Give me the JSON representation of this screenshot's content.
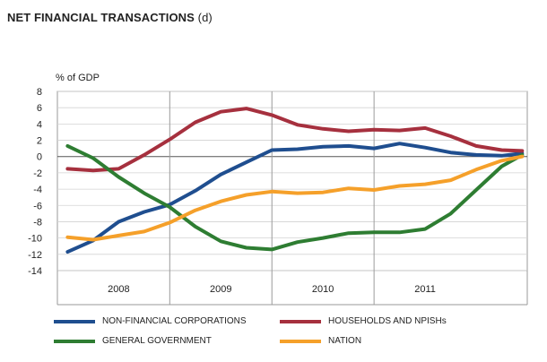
{
  "title": "NET FINANCIAL TRANSACTIONS",
  "title_suffix": "(d)",
  "chart_data": {
    "type": "line",
    "title": "NET FINANCIAL TRANSACTIONS (d)",
    "ylabel": "% of GDP",
    "xlabel": "",
    "ylim": [
      -14,
      8
    ],
    "yticks": [
      8,
      6,
      4,
      2,
      0,
      -2,
      -4,
      -6,
      -8,
      -10,
      -12,
      -14
    ],
    "xlim": [
      2007.4,
      2012.0
    ],
    "xticks": [
      {
        "label": "2008",
        "x": 2008.0
      },
      {
        "label": "2009",
        "x": 2009.0
      },
      {
        "label": "2010",
        "x": 2010.0
      },
      {
        "label": "2011",
        "x": 2011.0
      }
    ],
    "year_dividers": [
      2008.5,
      2009.5,
      2010.5
    ],
    "grid": true,
    "legend_position": "bottom",
    "series": [
      {
        "name": "NON-FINANCIAL CORPORATIONS",
        "color": "#1f4e8f",
        "x": [
          2007.5,
          2007.75,
          2008.0,
          2008.25,
          2008.5,
          2008.75,
          2009.0,
          2009.25,
          2009.5,
          2009.75,
          2010.0,
          2010.25,
          2010.5,
          2010.75,
          2011.0,
          2011.25,
          2011.5,
          2011.75,
          2011.95
        ],
        "values": [
          -11.7,
          -10.3,
          -8.0,
          -6.8,
          -5.9,
          -4.2,
          -2.2,
          -0.7,
          0.8,
          0.9,
          1.2,
          1.3,
          1.0,
          1.6,
          1.1,
          0.5,
          0.2,
          0.1,
          0.4
        ]
      },
      {
        "name": "HOUSEHOLDS AND NPISHs",
        "color": "#a6303e",
        "x": [
          2007.5,
          2007.75,
          2008.0,
          2008.25,
          2008.5,
          2008.75,
          2009.0,
          2009.25,
          2009.5,
          2009.75,
          2010.0,
          2010.25,
          2010.5,
          2010.75,
          2011.0,
          2011.25,
          2011.5,
          2011.75,
          2011.95
        ],
        "values": [
          -1.5,
          -1.7,
          -1.5,
          0.2,
          2.1,
          4.2,
          5.5,
          5.9,
          5.1,
          3.9,
          3.4,
          3.1,
          3.3,
          3.2,
          3.5,
          2.5,
          1.3,
          0.8,
          0.7
        ]
      },
      {
        "name": "GENERAL GOVERNMENT",
        "color": "#2e7d32",
        "x": [
          2007.5,
          2007.75,
          2008.0,
          2008.25,
          2008.5,
          2008.75,
          2009.0,
          2009.25,
          2009.5,
          2009.75,
          2010.0,
          2010.25,
          2010.5,
          2010.75,
          2011.0,
          2011.25,
          2011.5,
          2011.75,
          2011.95
        ],
        "values": [
          1.3,
          -0.2,
          -2.5,
          -4.5,
          -6.2,
          -8.6,
          -10.4,
          -11.2,
          -11.4,
          -10.5,
          -10.0,
          -9.4,
          -9.3,
          -9.3,
          -8.9,
          -7.0,
          -4.1,
          -1.2,
          0.2
        ]
      },
      {
        "name": "NATION",
        "color": "#f5a02a",
        "x": [
          2007.5,
          2007.75,
          2008.0,
          2008.25,
          2008.5,
          2008.75,
          2009.0,
          2009.25,
          2009.5,
          2009.75,
          2010.0,
          2010.25,
          2010.5,
          2010.75,
          2011.0,
          2011.25,
          2011.5,
          2011.75,
          2011.95
        ],
        "values": [
          -9.9,
          -10.2,
          -9.7,
          -9.2,
          -8.1,
          -6.6,
          -5.5,
          -4.7,
          -4.3,
          -4.5,
          -4.4,
          -3.9,
          -4.1,
          -3.6,
          -3.4,
          -2.9,
          -1.6,
          -0.5,
          0.0
        ]
      }
    ]
  }
}
